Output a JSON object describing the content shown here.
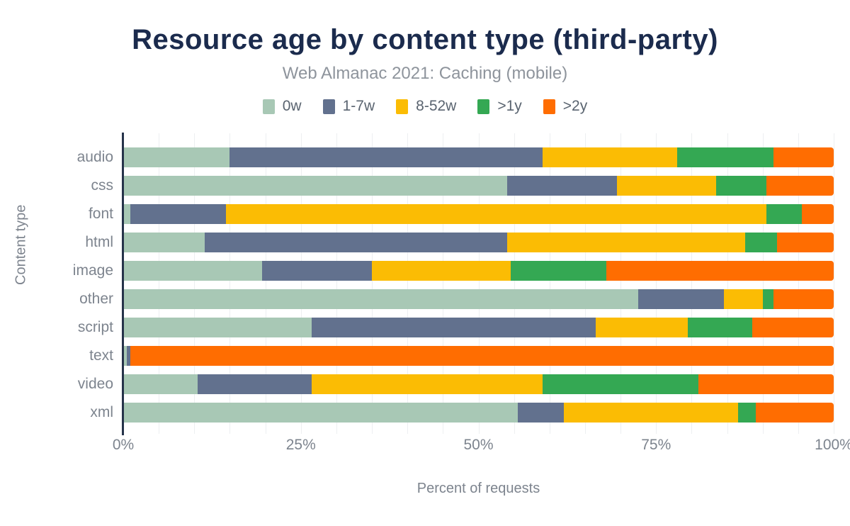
{
  "chart": {
    "title": "Resource age by content type (third-party)",
    "subtitle": "Web Almanac 2021: Caching (mobile)",
    "xlabel": "Percent of requests",
    "ylabel": "Content type"
  },
  "colors": {
    "title": "#1b2b4d",
    "subtitle": "#8e949c",
    "axis_text": "#7d848e",
    "axis_line": "#26334a",
    "gridline": "#edeff1",
    "background": "#ffffff"
  },
  "chart_data": {
    "type": "bar",
    "orientation": "horizontal",
    "stacked": true,
    "unit": "percent",
    "title": "Resource age by content type (third-party)",
    "subtitle": "Web Almanac 2021: Caching (mobile)",
    "xlabel": "Percent of requests",
    "ylabel": "Content type",
    "xlim": [
      0,
      100
    ],
    "gridline_step": 5,
    "legend_position": "top",
    "x_ticks": [
      {
        "label": "0%",
        "value": 0
      },
      {
        "label": "25%",
        "value": 25
      },
      {
        "label": "50%",
        "value": 50
      },
      {
        "label": "75%",
        "value": 75
      },
      {
        "label": "100%",
        "value": 100
      }
    ],
    "categories": [
      "audio",
      "css",
      "font",
      "html",
      "image",
      "other",
      "script",
      "text",
      "video",
      "xml"
    ],
    "series": [
      {
        "name": "0w",
        "color": "#a8c8b5",
        "values": [
          15,
          54,
          1,
          11.5,
          19.5,
          72.5,
          26.5,
          0.5,
          10.5,
          55.5
        ]
      },
      {
        "name": "1-7w",
        "color": "#62718e",
        "values": [
          44,
          15.5,
          13.5,
          42.5,
          15.5,
          12,
          40,
          0.5,
          16,
          6.5
        ]
      },
      {
        "name": "8-52w",
        "color": "#fbbc04",
        "values": [
          19,
          14,
          76,
          33.5,
          19.5,
          5.5,
          13,
          0,
          32.5,
          24.5
        ]
      },
      {
        "name": ">1y",
        "color": "#34a853",
        "values": [
          13.5,
          7,
          5,
          4.5,
          13.5,
          1.5,
          9,
          0,
          22,
          2.5
        ]
      },
      {
        "name": ">2y",
        "color": "#ff6d01",
        "values": [
          8.5,
          9.5,
          4.5,
          8,
          32,
          8.5,
          11.5,
          99,
          19,
          11
        ]
      }
    ]
  }
}
